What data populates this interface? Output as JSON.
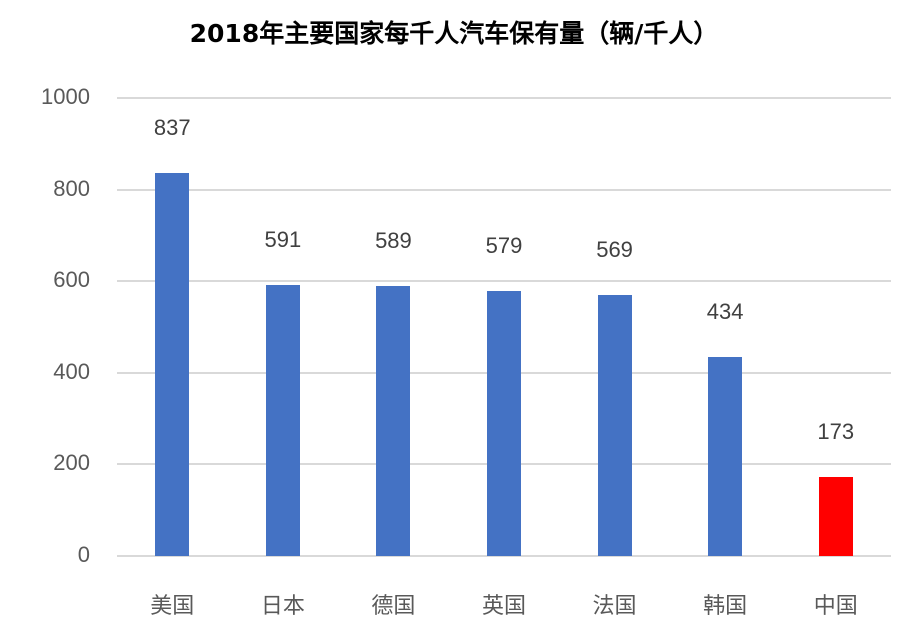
{
  "title": "2018年主要国家每千人汽车保有量（辆/千人）",
  "chart_data": {
    "type": "bar",
    "title": "2018年主要国家每千人汽车保有量（辆/千人）",
    "xlabel": "",
    "ylabel": "",
    "categories": [
      "美国",
      "日本",
      "德国",
      "英国",
      "法国",
      "韩国",
      "中国"
    ],
    "values": [
      837,
      591,
      589,
      579,
      569,
      434,
      173
    ],
    "data_labels": [
      "837",
      "591",
      "589",
      "579",
      "569",
      "434",
      "173"
    ],
    "colors": [
      "#4472C4",
      "#4472C4",
      "#4472C4",
      "#4472C4",
      "#4472C4",
      "#4472C4",
      "#FF0000"
    ],
    "ylim": [
      0,
      1000
    ],
    "yticks": [
      "0",
      "200",
      "400",
      "600",
      "800",
      "1000"
    ],
    "grid": true,
    "legend": "none"
  }
}
